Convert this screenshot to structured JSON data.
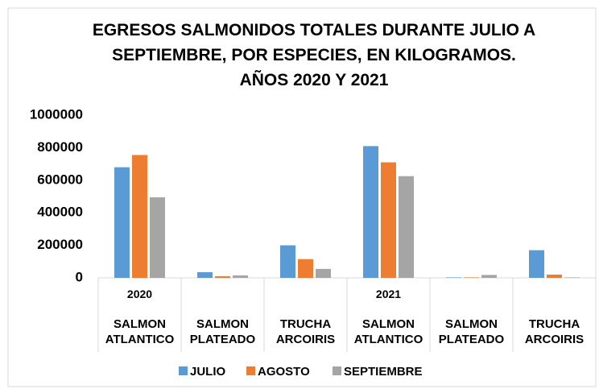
{
  "chart_data": {
    "type": "bar",
    "title": "EGRESOS SALMONIDOS TOTALES DURANTE JULIO A\nSEPTIEMBRE, POR ESPECIES, EN KILOGRAMOS.\nAÑOS 2020 Y 2021",
    "category_groups": [
      "2020",
      null,
      null,
      "2021",
      null,
      null
    ],
    "categories": [
      "SALMON ATLANTICO",
      "SALMON PLATEADO",
      "TRUCHA ARCOIRIS",
      "SALMON ATLANTICO",
      "SALMON PLATEADO",
      "TRUCHA ARCOIRIS"
    ],
    "series": [
      {
        "name": "JULIO",
        "color": "#5b9bd5",
        "values": [
          680000,
          35000,
          200000,
          810000,
          3000,
          170000
        ]
      },
      {
        "name": "AGOSTO",
        "color": "#ed7d31",
        "values": [
          755000,
          10000,
          115000,
          710000,
          3000,
          20000
        ]
      },
      {
        "name": "SEPTIEMBRE",
        "color": "#a5a5a5",
        "values": [
          495000,
          15000,
          55000,
          625000,
          18000,
          3000
        ]
      }
    ],
    "ylim": [
      0,
      1000000
    ],
    "yticks": [
      0,
      200000,
      400000,
      600000,
      800000,
      1000000
    ],
    "grid": false,
    "legend": "bottom"
  }
}
